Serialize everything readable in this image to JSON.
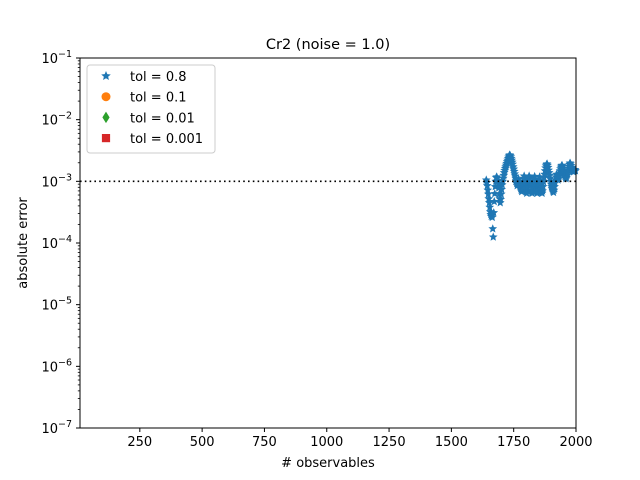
{
  "chart_data": {
    "type": "scatter",
    "title": "Cr2 (noise = 1.0)",
    "xlabel": "# observables",
    "ylabel": "absolute error",
    "xlim": [
      10,
      2000
    ],
    "ylim": [
      1e-07,
      0.1
    ],
    "yscale": "log",
    "xticks": [
      250,
      500,
      750,
      1000,
      1250,
      1500,
      1750,
      2000
    ],
    "xtick_labels": [
      "250",
      "500",
      "750",
      "1000",
      "1250",
      "1500",
      "1750",
      "2000"
    ],
    "yticks": [
      1e-07,
      1e-06,
      1e-05,
      0.0001,
      0.001,
      0.01,
      0.1
    ],
    "ytick_labels": [
      {
        "base": "10",
        "exp": "−7"
      },
      {
        "base": "10",
        "exp": "−6"
      },
      {
        "base": "10",
        "exp": "−5"
      },
      {
        "base": "10",
        "exp": "−4"
      },
      {
        "base": "10",
        "exp": "−3"
      },
      {
        "base": "10",
        "exp": "−2"
      },
      {
        "base": "10",
        "exp": "−1"
      }
    ],
    "grid": false,
    "legend_position": "top-left",
    "reference_line": {
      "y": 0.001,
      "style": "dotted",
      "color": "#000000"
    },
    "series": [
      {
        "name": "tol = 0.8",
        "marker": "star",
        "color": "#1f77b4",
        "points": [
          [
            1640,
            0.00105
          ],
          [
            1642,
            0.00095
          ],
          [
            1644,
            0.00085
          ],
          [
            1646,
            0.00072
          ],
          [
            1648,
            0.00062
          ],
          [
            1650,
            0.00052
          ],
          [
            1652,
            0.00045
          ],
          [
            1654,
            0.00038
          ],
          [
            1656,
            0.00032
          ],
          [
            1658,
            0.00029
          ],
          [
            1660,
            0.00027
          ],
          [
            1662,
            0.00028
          ],
          [
            1664,
            0.00026
          ],
          [
            1666,
            0.00017
          ],
          [
            1668,
            0.000125
          ],
          [
            1670,
            0.00031
          ],
          [
            1672,
            0.00047
          ],
          [
            1674,
            0.00063
          ],
          [
            1676,
            0.00082
          ],
          [
            1678,
            0.001
          ],
          [
            1680,
            0.00115
          ],
          [
            1682,
            0.00118
          ],
          [
            1684,
            0.00112
          ],
          [
            1686,
            0.00103
          ],
          [
            1688,
            0.00092
          ],
          [
            1690,
            0.00078
          ],
          [
            1692,
            0.00062
          ],
          [
            1694,
            0.00052
          ],
          [
            1696,
            0.00045
          ],
          [
            1698,
            0.00051
          ],
          [
            1700,
            0.00062
          ],
          [
            1702,
            0.00074
          ],
          [
            1704,
            0.00088
          ],
          [
            1706,
            0.001
          ],
          [
            1708,
            0.00112
          ],
          [
            1710,
            0.00125
          ],
          [
            1712,
            0.00138
          ],
          [
            1714,
            0.0015
          ],
          [
            1716,
            0.00162
          ],
          [
            1718,
            0.00172
          ],
          [
            1720,
            0.00183
          ],
          [
            1722,
            0.00195
          ],
          [
            1724,
            0.00208
          ],
          [
            1726,
            0.0022
          ],
          [
            1728,
            0.00235
          ],
          [
            1730,
            0.00248
          ],
          [
            1732,
            0.0026
          ],
          [
            1734,
            0.00268
          ],
          [
            1736,
            0.00262
          ],
          [
            1738,
            0.0025
          ],
          [
            1740,
            0.00235
          ],
          [
            1742,
            0.0022
          ],
          [
            1744,
            0.00205
          ],
          [
            1746,
            0.0019
          ],
          [
            1748,
            0.00172
          ],
          [
            1750,
            0.00158
          ],
          [
            1752,
            0.00145
          ],
          [
            1754,
            0.00132
          ],
          [
            1756,
            0.00122
          ],
          [
            1758,
            0.00112
          ],
          [
            1760,
            0.00102
          ],
          [
            1762,
            0.00092
          ],
          [
            1764,
            0.00085
          ],
          [
            1766,
            0.00092
          ],
          [
            1768,
            0.001
          ],
          [
            1770,
            0.00108
          ],
          [
            1772,
            0.00098
          ],
          [
            1774,
            0.00088
          ],
          [
            1776,
            0.00082
          ],
          [
            1778,
            0.00076
          ],
          [
            1780,
            0.00072
          ],
          [
            1782,
            0.00068
          ],
          [
            1784,
            0.00075
          ],
          [
            1786,
            0.00086
          ],
          [
            1788,
            0.00098
          ],
          [
            1790,
            0.00112
          ],
          [
            1792,
            0.00122
          ],
          [
            1794,
            0.00108
          ],
          [
            1796,
            0.00092
          ],
          [
            1798,
            0.00078
          ],
          [
            1800,
            0.00068
          ],
          [
            1802,
            0.00064
          ],
          [
            1804,
            0.0007
          ],
          [
            1806,
            0.00082
          ],
          [
            1808,
            0.00095
          ],
          [
            1810,
            0.0011
          ],
          [
            1812,
            0.00122
          ],
          [
            1814,
            0.00115
          ],
          [
            1816,
            0.001
          ],
          [
            1818,
            0.00085
          ],
          [
            1820,
            0.00072
          ],
          [
            1822,
            0.00066
          ],
          [
            1824,
            0.00064
          ],
          [
            1826,
            0.0007
          ],
          [
            1828,
            0.00082
          ],
          [
            1830,
            0.00096
          ],
          [
            1832,
            0.0011
          ],
          [
            1834,
            0.0012
          ],
          [
            1836,
            0.00108
          ],
          [
            1838,
            0.00092
          ],
          [
            1840,
            0.00078
          ],
          [
            1842,
            0.00068
          ],
          [
            1844,
            0.00064
          ],
          [
            1846,
            0.00068
          ],
          [
            1848,
            0.00078
          ],
          [
            1850,
            0.0009
          ],
          [
            1852,
            0.00105
          ],
          [
            1854,
            0.00118
          ],
          [
            1856,
            0.00105
          ],
          [
            1858,
            0.00088
          ],
          [
            1860,
            0.00074
          ],
          [
            1862,
            0.00066
          ],
          [
            1864,
            0.00064
          ],
          [
            1866,
            0.0007
          ],
          [
            1868,
            0.00082
          ],
          [
            1870,
            0.00098
          ],
          [
            1872,
            0.00115
          ],
          [
            1874,
            0.0013
          ],
          [
            1876,
            0.00148
          ],
          [
            1878,
            0.00165
          ],
          [
            1880,
            0.00178
          ],
          [
            1882,
            0.00188
          ],
          [
            1884,
            0.00192
          ],
          [
            1886,
            0.00182
          ],
          [
            1888,
            0.00168
          ],
          [
            1890,
            0.00152
          ],
          [
            1892,
            0.00138
          ],
          [
            1894,
            0.00125
          ],
          [
            1896,
            0.00112
          ],
          [
            1898,
            0.001
          ],
          [
            1900,
            0.0009
          ],
          [
            1902,
            0.00082
          ],
          [
            1904,
            0.00076
          ],
          [
            1906,
            0.00072
          ],
          [
            1908,
            0.00068
          ],
          [
            1910,
            0.00066
          ],
          [
            1912,
            0.00072
          ],
          [
            1914,
            0.00082
          ],
          [
            1916,
            0.00094
          ],
          [
            1918,
            0.00106
          ],
          [
            1920,
            0.00118
          ],
          [
            1922,
            0.0013
          ],
          [
            1924,
            0.00125
          ],
          [
            1926,
            0.00115
          ],
          [
            1928,
            0.00105
          ],
          [
            1930,
            0.00112
          ],
          [
            1932,
            0.00122
          ],
          [
            1934,
            0.00135
          ],
          [
            1936,
            0.00148
          ],
          [
            1938,
            0.0016
          ],
          [
            1940,
            0.0017
          ],
          [
            1942,
            0.00178
          ],
          [
            1944,
            0.00182
          ],
          [
            1946,
            0.00172
          ],
          [
            1948,
            0.0016
          ],
          [
            1950,
            0.00148
          ],
          [
            1952,
            0.00138
          ],
          [
            1954,
            0.00128
          ],
          [
            1956,
            0.0012
          ],
          [
            1958,
            0.00114
          ],
          [
            1960,
            0.0011
          ],
          [
            1962,
            0.00116
          ],
          [
            1964,
            0.00126
          ],
          [
            1966,
            0.00138
          ],
          [
            1968,
            0.0015
          ],
          [
            1970,
            0.00162
          ],
          [
            1972,
            0.00175
          ],
          [
            1974,
            0.00188
          ],
          [
            1976,
            0.00198
          ],
          [
            1978,
            0.00192
          ],
          [
            1980,
            0.0018
          ],
          [
            1982,
            0.00168
          ],
          [
            1984,
            0.00158
          ],
          [
            1986,
            0.0015
          ],
          [
            1988,
            0.00145
          ],
          [
            1990,
            0.00142
          ],
          [
            1992,
            0.00145
          ],
          [
            1994,
            0.0015
          ],
          [
            1996,
            0.00155
          ],
          [
            1998,
            0.00148
          ]
        ]
      },
      {
        "name": "tol = 0.1",
        "marker": "circle",
        "color": "#ff7f0e",
        "points": []
      },
      {
        "name": "tol = 0.01",
        "marker": "diamond",
        "color": "#2ca02c",
        "points": []
      },
      {
        "name": "tol = 0.001",
        "marker": "square",
        "color": "#d62728",
        "points": []
      }
    ]
  }
}
